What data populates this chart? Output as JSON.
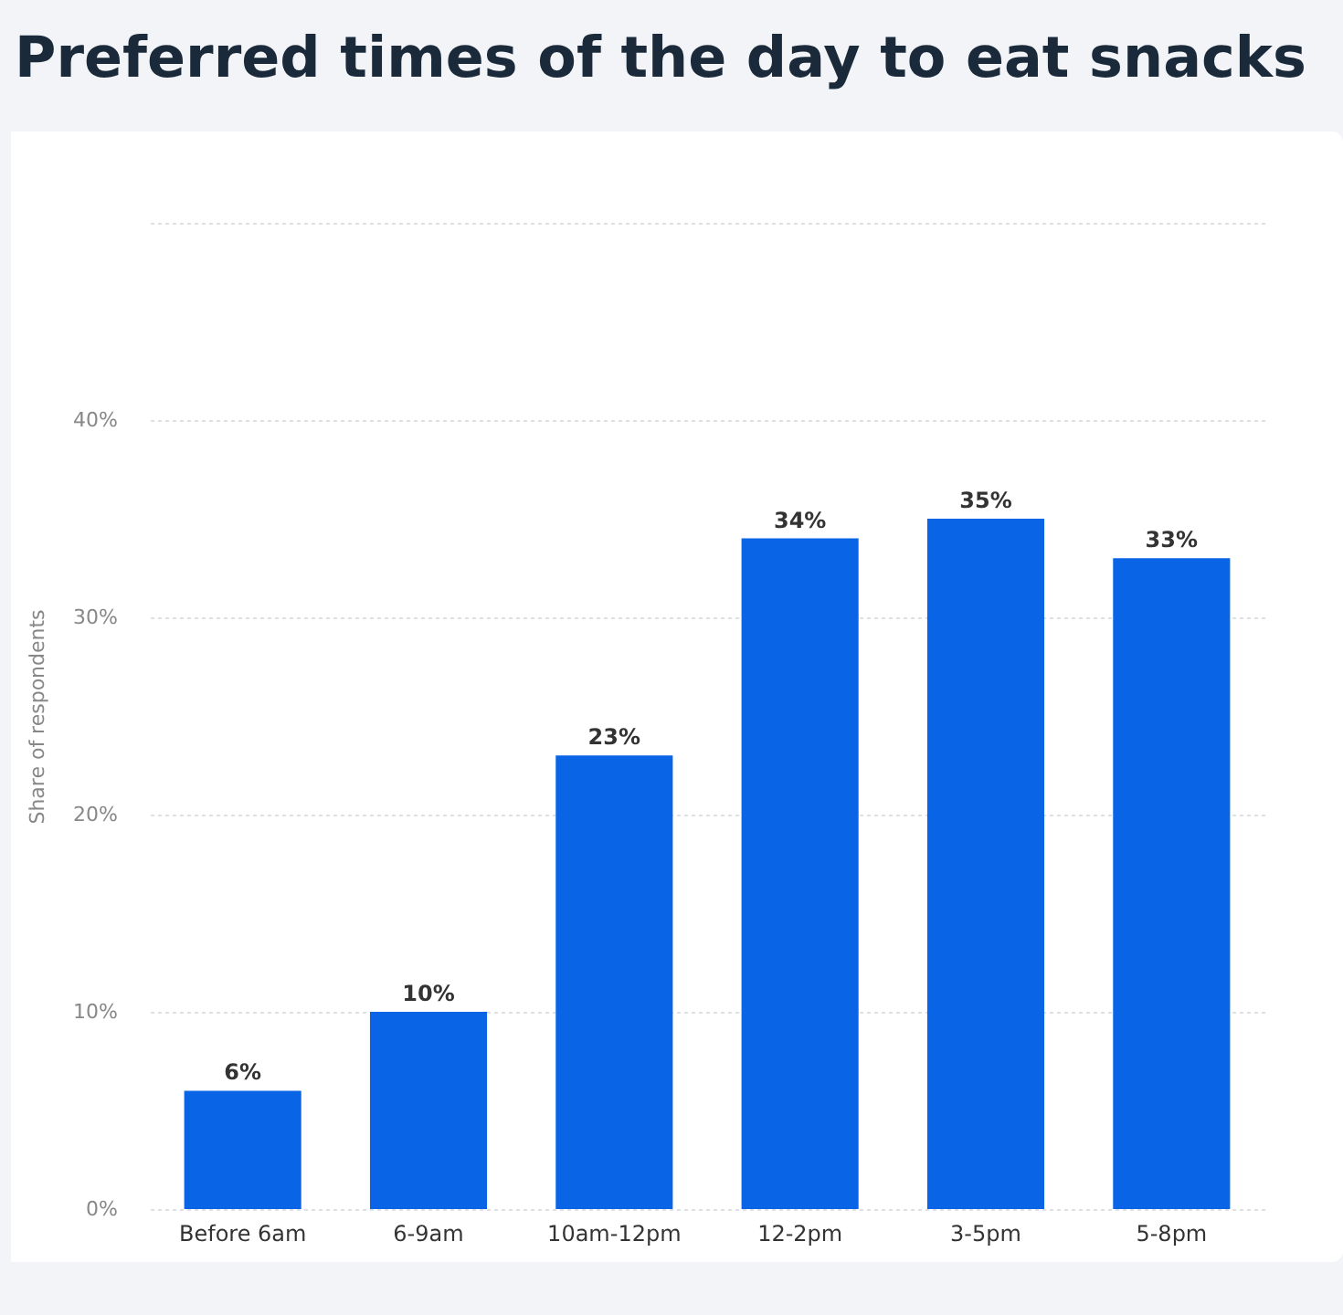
{
  "chart_data": {
    "type": "bar",
    "title": "Preferred times of the day to eat snacks",
    "ylabel": "Share of respondents",
    "categories": [
      "Before 6am",
      "6-9am",
      "10am-12pm",
      "12-2pm",
      "3-5pm",
      "5-8pm"
    ],
    "values": [
      6,
      10,
      23,
      34,
      35,
      33
    ],
    "value_labels": [
      "6%",
      "10%",
      "23%",
      "34%",
      "35%",
      "33%"
    ],
    "color": "#0a64e6",
    "ylim": [
      0,
      50
    ],
    "yticks": [
      {
        "value": 0,
        "label": "0%"
      },
      {
        "value": 10,
        "label": "10%"
      },
      {
        "value": 20,
        "label": "20%"
      },
      {
        "value": 30,
        "label": "30%"
      },
      {
        "value": 40,
        "label": "40%"
      },
      {
        "value": 50,
        "label": null
      }
    ],
    "grid": "y"
  }
}
